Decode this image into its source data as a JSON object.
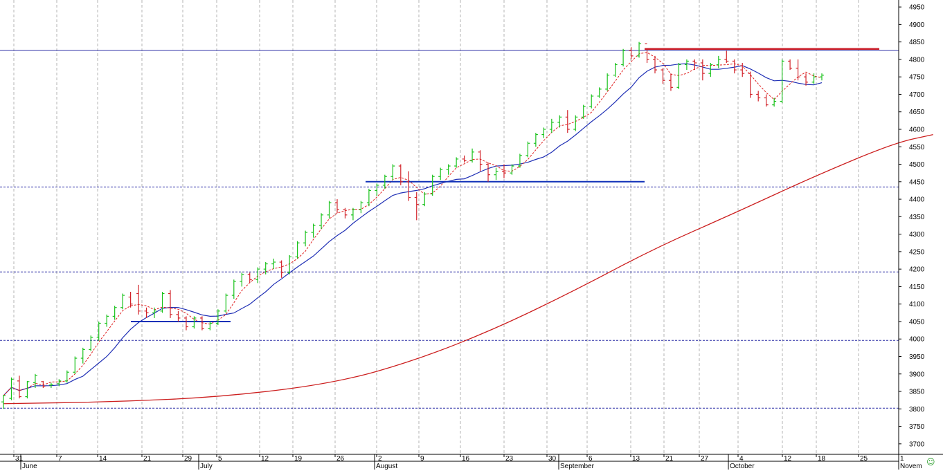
{
  "chart_data": {
    "type": "ohlc",
    "colors": {
      "up": "#19c21b",
      "down": "#d2232a",
      "ma_fast": "#e02020",
      "ma_mid": "#1f2fb5",
      "ma_long": "#cc1f1f",
      "resistance": "#cc1f2a",
      "hline": "#2b2fa6",
      "support": "#1030b8",
      "grid": "#b3b3b3",
      "frame": "#000000"
    },
    "y_axis": {
      "min": 3670,
      "max": 4970,
      "ticks": [
        3700,
        3750,
        3800,
        3850,
        3900,
        3950,
        4000,
        4050,
        4100,
        4150,
        4200,
        4250,
        4300,
        4350,
        4400,
        4450,
        4500,
        4550,
        4600,
        4650,
        4700,
        4750,
        4800,
        4850,
        4900,
        4950
      ],
      "position": "right"
    },
    "x_axis": {
      "day_ticks": [
        "31",
        "7",
        "14",
        "21",
        "29",
        "5",
        "12",
        "19",
        "26",
        "2",
        "9",
        "16",
        "23",
        "30",
        "6",
        "13",
        "21",
        "27",
        "4",
        "12",
        "18",
        "25",
        "1"
      ],
      "month_labels": [
        "June",
        "July",
        "August",
        "September",
        "October",
        "Novem"
      ]
    },
    "gridlines": "vertical dashed at day ticks",
    "horizontal_lines": [
      {
        "value": 4826,
        "style": "solid"
      },
      {
        "value": 4435,
        "style": "dashed"
      },
      {
        "value": 4192,
        "style": "dashed"
      },
      {
        "value": 3996,
        "style": "dashed"
      },
      {
        "value": 3802,
        "style": "dashed"
      }
    ],
    "support_lines": [
      {
        "from": "21",
        "to": "5",
        "value": 4050
      },
      {
        "from": "2",
        "to": "13",
        "value": 4450
      }
    ],
    "resistance_line": {
      "from": "13",
      "to": "25",
      "value": 4830
    },
    "bars": [
      [
        3820,
        3840,
        3800,
        3838
      ],
      [
        3830,
        3890,
        3825,
        3885
      ],
      [
        3880,
        3895,
        3830,
        3835
      ],
      [
        3835,
        3880,
        3830,
        3878
      ],
      [
        3875,
        3900,
        3860,
        3895
      ],
      [
        3878,
        3880,
        3860,
        3865
      ],
      [
        3868,
        3875,
        3860,
        3870
      ],
      [
        3872,
        3885,
        3865,
        3880
      ],
      [
        3880,
        3910,
        3875,
        3905
      ],
      [
        3905,
        3950,
        3900,
        3945
      ],
      [
        3945,
        3975,
        3930,
        3970
      ],
      [
        3970,
        4010,
        3965,
        4005
      ],
      [
        4005,
        4050,
        3995,
        4045
      ],
      [
        4045,
        4070,
        4035,
        4065
      ],
      [
        4065,
        4095,
        4055,
        4090
      ],
      [
        4090,
        4130,
        4085,
        4125
      ],
      [
        4120,
        4135,
        4090,
        4100
      ],
      [
        4130,
        4155,
        4070,
        4080
      ],
      [
        4080,
        4090,
        4060,
        4075
      ],
      [
        4075,
        4090,
        4060,
        4080
      ],
      [
        4080,
        4135,
        4075,
        4130
      ],
      [
        4130,
        4140,
        4060,
        4070
      ],
      [
        4070,
        4080,
        4050,
        4060
      ],
      [
        4060,
        4065,
        4025,
        4035
      ],
      [
        4035,
        4065,
        4030,
        4060
      ],
      [
        4060,
        4065,
        4025,
        4030
      ],
      [
        4030,
        4050,
        4025,
        4045
      ],
      [
        4045,
        4085,
        4040,
        4080
      ],
      [
        4080,
        4130,
        4075,
        4125
      ],
      [
        4125,
        4170,
        4115,
        4165
      ],
      [
        4165,
        4190,
        4150,
        4185
      ],
      [
        4185,
        4190,
        4160,
        4170
      ],
      [
        4170,
        4205,
        4160,
        4200
      ],
      [
        4200,
        4220,
        4185,
        4215
      ],
      [
        4215,
        4230,
        4200,
        4220
      ],
      [
        4220,
        4225,
        4175,
        4190
      ],
      [
        4190,
        4240,
        4185,
        4235
      ],
      [
        4235,
        4280,
        4230,
        4275
      ],
      [
        4275,
        4310,
        4265,
        4305
      ],
      [
        4305,
        4330,
        4290,
        4325
      ],
      [
        4325,
        4360,
        4315,
        4355
      ],
      [
        4355,
        4395,
        4345,
        4390
      ],
      [
        4390,
        4400,
        4360,
        4370
      ],
      [
        4370,
        4375,
        4345,
        4355
      ],
      [
        4355,
        4375,
        4340,
        4370
      ],
      [
        4370,
        4395,
        4360,
        4390
      ],
      [
        4390,
        4430,
        4380,
        4425
      ],
      [
        4425,
        4445,
        4410,
        4440
      ],
      [
        4440,
        4470,
        4430,
        4465
      ],
      [
        4465,
        4500,
        4455,
        4495
      ],
      [
        4495,
        4500,
        4440,
        4450
      ],
      [
        4450,
        4480,
        4395,
        4405
      ],
      [
        4405,
        4420,
        4340,
        4385
      ],
      [
        4385,
        4420,
        4380,
        4415
      ],
      [
        4415,
        4470,
        4410,
        4465
      ],
      [
        4465,
        4490,
        4455,
        4485
      ],
      [
        4485,
        4500,
        4470,
        4495
      ],
      [
        4495,
        4520,
        4490,
        4515
      ],
      [
        4515,
        4525,
        4505,
        4510
      ],
      [
        4510,
        4545,
        4505,
        4535
      ],
      [
        4535,
        4540,
        4480,
        4500
      ],
      [
        4500,
        4505,
        4450,
        4470
      ],
      [
        4470,
        4490,
        4455,
        4480
      ],
      [
        4480,
        4500,
        4460,
        4475
      ],
      [
        4475,
        4500,
        4470,
        4495
      ],
      [
        4495,
        4530,
        4490,
        4525
      ],
      [
        4525,
        4565,
        4520,
        4560
      ],
      [
        4560,
        4590,
        4550,
        4585
      ],
      [
        4585,
        4605,
        4575,
        4600
      ],
      [
        4600,
        4630,
        4590,
        4620
      ],
      [
        4620,
        4640,
        4605,
        4635
      ],
      [
        4635,
        4655,
        4590,
        4600
      ],
      [
        4600,
        4640,
        4595,
        4635
      ],
      [
        4635,
        4670,
        4630,
        4665
      ],
      [
        4665,
        4700,
        4660,
        4695
      ],
      [
        4695,
        4720,
        4690,
        4715
      ],
      [
        4715,
        4760,
        4710,
        4755
      ],
      [
        4755,
        4790,
        4750,
        4785
      ],
      [
        4785,
        4830,
        4780,
        4825
      ],
      [
        4825,
        4835,
        4800,
        4810
      ],
      [
        4810,
        4850,
        4805,
        4845
      ],
      [
        4845,
        4830,
        4790,
        4800
      ],
      [
        4800,
        4810,
        4760,
        4770
      ],
      [
        4770,
        4775,
        4730,
        4740
      ],
      [
        4740,
        4760,
        4710,
        4720
      ],
      [
        4720,
        4790,
        4715,
        4785
      ],
      [
        4785,
        4800,
        4770,
        4795
      ],
      [
        4795,
        4800,
        4770,
        4790
      ],
      [
        4790,
        4800,
        4740,
        4760
      ],
      [
        4760,
        4790,
        4750,
        4785
      ],
      [
        4785,
        4810,
        4775,
        4800
      ],
      [
        4800,
        4825,
        4790,
        4795
      ],
      [
        4795,
        4800,
        4760,
        4770
      ],
      [
        4770,
        4790,
        4750,
        4760
      ],
      [
        4760,
        4765,
        4690,
        4700
      ],
      [
        4700,
        4710,
        4680,
        4690
      ],
      [
        4690,
        4700,
        4665,
        4670
      ],
      [
        4670,
        4690,
        4665,
        4680
      ],
      [
        4680,
        4800,
        4675,
        4795
      ],
      [
        4795,
        4800,
        4770,
        4775
      ],
      [
        4775,
        4800,
        4740,
        4750
      ],
      [
        4750,
        4760,
        4725,
        4735
      ],
      [
        4735,
        4760,
        4730,
        4750
      ],
      [
        4750,
        4760,
        4740,
        4755
      ]
    ],
    "ma_long_points": [
      [
        0,
        3815
      ],
      [
        14,
        3820
      ],
      [
        28,
        3835
      ],
      [
        42,
        3875
      ],
      [
        52,
        3940
      ],
      [
        62,
        4030
      ],
      [
        72,
        4140
      ],
      [
        82,
        4260
      ],
      [
        92,
        4360
      ],
      [
        102,
        4465
      ],
      [
        112,
        4560
      ],
      [
        117,
        4585
      ]
    ]
  },
  "footer": {
    "smiley": "☺"
  }
}
